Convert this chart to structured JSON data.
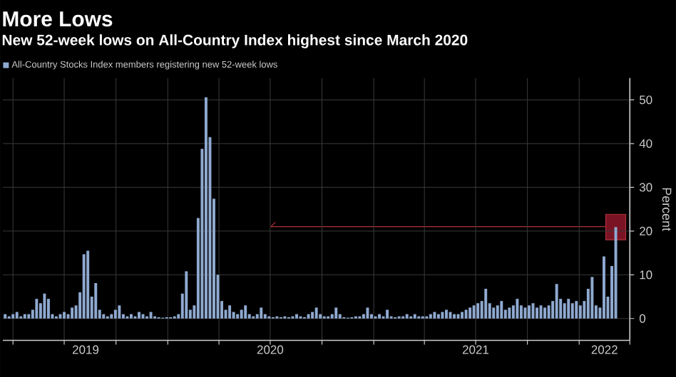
{
  "chart_data": {
    "type": "bar",
    "title": "More Lows",
    "subtitle": "New 52-week lows on All-Country Index highest since March 2020",
    "ylabel": "Percent",
    "x": [
      "2019-03-18",
      "2019-03-25",
      "2019-04-01",
      "2019-04-08",
      "2019-04-15",
      "2019-04-22",
      "2019-04-29",
      "2019-05-06",
      "2019-05-13",
      "2019-05-20",
      "2019-05-27",
      "2019-06-03",
      "2019-06-10",
      "2019-06-17",
      "2019-06-24",
      "2019-07-01",
      "2019-07-08",
      "2019-07-15",
      "2019-07-22",
      "2019-07-29",
      "2019-08-05",
      "2019-08-12",
      "2019-08-19",
      "2019-08-26",
      "2019-09-02",
      "2019-09-09",
      "2019-09-16",
      "2019-09-23",
      "2019-09-30",
      "2019-10-07",
      "2019-10-14",
      "2019-10-21",
      "2019-10-28",
      "2019-11-04",
      "2019-11-11",
      "2019-11-18",
      "2019-11-25",
      "2019-12-02",
      "2019-12-09",
      "2019-12-16",
      "2019-12-23",
      "2019-12-30",
      "2020-01-06",
      "2020-01-13",
      "2020-01-20",
      "2020-01-27",
      "2020-02-03",
      "2020-02-10",
      "2020-02-17",
      "2020-02-24",
      "2020-03-02",
      "2020-03-09",
      "2020-03-16",
      "2020-03-23",
      "2020-03-30",
      "2020-04-06",
      "2020-04-13",
      "2020-04-20",
      "2020-04-27",
      "2020-05-04",
      "2020-05-11",
      "2020-05-18",
      "2020-05-25",
      "2020-06-01",
      "2020-06-08",
      "2020-06-15",
      "2020-06-22",
      "2020-06-29",
      "2020-07-06",
      "2020-07-13",
      "2020-07-20",
      "2020-07-27",
      "2020-08-03",
      "2020-08-10",
      "2020-08-17",
      "2020-08-24",
      "2020-08-31",
      "2020-09-07",
      "2020-09-14",
      "2020-09-21",
      "2020-09-28",
      "2020-10-05",
      "2020-10-12",
      "2020-10-19",
      "2020-10-26",
      "2020-11-02",
      "2020-11-09",
      "2020-11-16",
      "2020-11-23",
      "2020-11-30",
      "2020-12-07",
      "2020-12-14",
      "2020-12-21",
      "2020-12-28",
      "2021-01-04",
      "2021-01-11",
      "2021-01-18",
      "2021-01-25",
      "2021-02-01",
      "2021-02-08",
      "2021-02-15",
      "2021-02-22",
      "2021-03-01",
      "2021-03-08",
      "2021-03-15",
      "2021-03-22",
      "2021-03-29",
      "2021-04-05",
      "2021-04-12",
      "2021-04-19",
      "2021-04-26",
      "2021-05-03",
      "2021-05-10",
      "2021-05-17",
      "2021-05-24",
      "2021-05-31",
      "2021-06-07",
      "2021-06-14",
      "2021-06-21",
      "2021-06-28",
      "2021-07-05",
      "2021-07-12",
      "2021-07-19",
      "2021-07-26",
      "2021-08-02",
      "2021-08-09",
      "2021-08-16",
      "2021-08-23",
      "2021-08-30",
      "2021-09-06",
      "2021-09-13",
      "2021-09-20",
      "2021-09-27",
      "2021-10-04",
      "2021-10-11",
      "2021-10-18",
      "2021-10-25",
      "2021-11-01",
      "2021-11-08",
      "2021-11-15",
      "2021-11-22",
      "2021-11-29",
      "2021-12-06",
      "2021-12-13",
      "2021-12-20",
      "2021-12-27",
      "2022-01-03",
      "2022-01-10",
      "2022-01-17",
      "2022-01-24",
      "2022-01-31",
      "2022-02-07",
      "2022-02-14",
      "2022-02-21",
      "2022-02-28",
      "2022-03-07"
    ],
    "series": [
      {
        "name": "All-Country Stocks Index members registering new 52-week lows",
        "color": "#8fa9d0",
        "values": [
          1,
          0.5,
          1,
          1.5,
          0.5,
          1,
          1,
          2,
          4.5,
          3.5,
          5.7,
          4.5,
          1,
          0.5,
          1,
          1.5,
          1,
          2.5,
          3,
          6,
          14.7,
          15.5,
          5,
          8.1,
          2,
          1,
          0.5,
          1,
          2,
          3,
          1,
          0.5,
          1,
          0.5,
          1.5,
          1,
          0.5,
          1.5,
          0.5,
          0.3,
          0.2,
          0.3,
          0.3,
          0.5,
          1,
          5.7,
          10.8,
          2,
          3,
          23,
          38.8,
          50.6,
          41.5,
          27.4,
          10,
          4,
          2,
          3,
          1.5,
          1,
          2,
          3,
          1,
          0.5,
          1,
          2.5,
          1,
          0.5,
          0.3,
          0.5,
          0.3,
          0.5,
          0.3,
          0.5,
          1,
          0.5,
          0.3,
          1,
          1.5,
          2.5,
          1,
          0.5,
          0.5,
          1,
          2.5,
          1,
          0.3,
          0.2,
          0.3,
          0.5,
          0.5,
          1,
          2.5,
          1,
          0.5,
          1,
          0.5,
          2,
          0.5,
          0.3,
          0.5,
          0.5,
          1,
          0.5,
          1,
          0.5,
          0.5,
          0.5,
          1,
          1.5,
          1,
          1.5,
          2,
          1.5,
          1,
          1,
          1.5,
          2,
          2.5,
          3,
          3.5,
          4,
          6.8,
          3.5,
          2.5,
          3,
          4,
          2,
          2.5,
          3,
          4.5,
          3,
          2.5,
          3,
          3.5,
          2.5,
          3,
          2.5,
          3,
          4,
          7.9,
          4.5,
          3.5,
          4.5,
          3.5,
          4,
          3,
          4,
          6.8,
          9.5,
          3,
          2.5,
          14.2,
          5,
          12,
          20.9
        ]
      }
    ],
    "xlim": [
      "2019-03-14",
      "2022-04-01"
    ],
    "xticks": [
      {
        "value": "2019-04-01",
        "label": null
      },
      {
        "value": "2019-07-01",
        "label": null
      },
      {
        "value": "2019-10-01",
        "label": null
      },
      {
        "value": "2020-01-01",
        "label": null
      },
      {
        "value": "2020-04-01",
        "label": null
      },
      {
        "value": "2020-07-01",
        "label": null
      },
      {
        "value": "2020-10-01",
        "label": null
      },
      {
        "value": "2021-01-01",
        "label": null
      },
      {
        "value": "2021-04-01",
        "label": null
      },
      {
        "value": "2021-07-01",
        "label": null
      },
      {
        "value": "2021-10-01",
        "label": null
      },
      {
        "value": "2022-01-01",
        "label": null
      },
      {
        "value": "2022-04-01",
        "label": null
      },
      {
        "value": "2019-08-08",
        "label": "2019"
      },
      {
        "value": "2020-07-01",
        "label": "2020"
      },
      {
        "value": "2021-07-01",
        "label": "2021"
      },
      {
        "value": "2022-02-15",
        "label": "2022"
      }
    ],
    "ylim": [
      -5,
      55
    ],
    "yticks": [
      0,
      10,
      20,
      30,
      40,
      50
    ],
    "ref_lines": [
      {
        "axis": "y",
        "value": 21,
        "color": "#b0303a"
      }
    ],
    "grid": true,
    "legend": "top left"
  }
}
